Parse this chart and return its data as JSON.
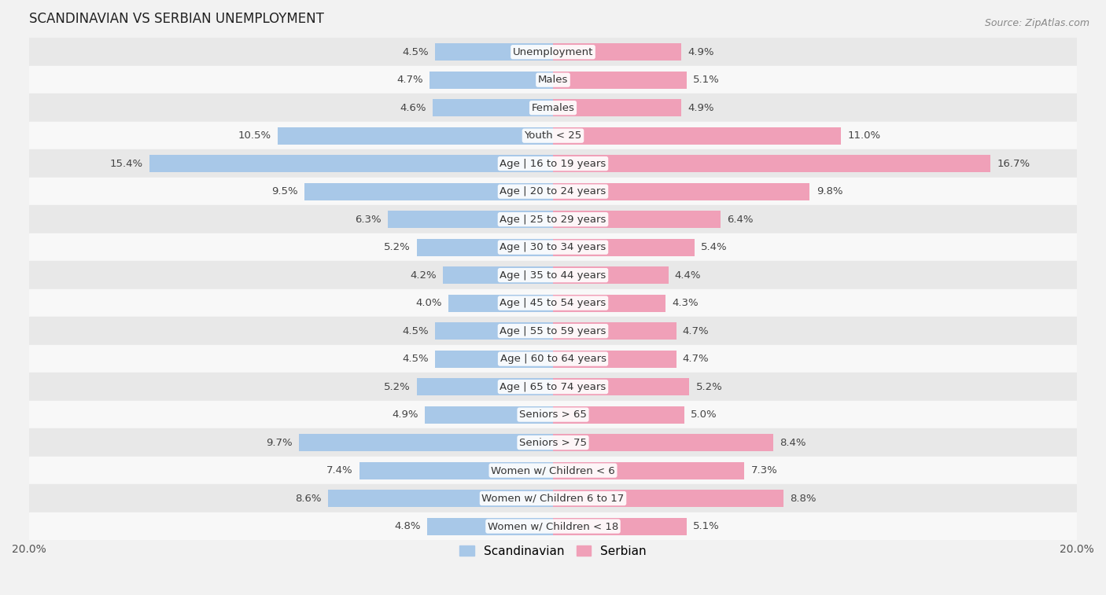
{
  "title": "SCANDINAVIAN VS SERBIAN UNEMPLOYMENT",
  "source": "Source: ZipAtlas.com",
  "categories": [
    "Unemployment",
    "Males",
    "Females",
    "Youth < 25",
    "Age | 16 to 19 years",
    "Age | 20 to 24 years",
    "Age | 25 to 29 years",
    "Age | 30 to 34 years",
    "Age | 35 to 44 years",
    "Age | 45 to 54 years",
    "Age | 55 to 59 years",
    "Age | 60 to 64 years",
    "Age | 65 to 74 years",
    "Seniors > 65",
    "Seniors > 75",
    "Women w/ Children < 6",
    "Women w/ Children 6 to 17",
    "Women w/ Children < 18"
  ],
  "scandinavian": [
    4.5,
    4.7,
    4.6,
    10.5,
    15.4,
    9.5,
    6.3,
    5.2,
    4.2,
    4.0,
    4.5,
    4.5,
    5.2,
    4.9,
    9.7,
    7.4,
    8.6,
    4.8
  ],
  "serbian": [
    4.9,
    5.1,
    4.9,
    11.0,
    16.7,
    9.8,
    6.4,
    5.4,
    4.4,
    4.3,
    4.7,
    4.7,
    5.2,
    5.0,
    8.4,
    7.3,
    8.8,
    5.1
  ],
  "scandinavian_color": "#a8c8e8",
  "serbian_color": "#f0a0b8",
  "bar_height": 0.62,
  "bg_color": "#f2f2f2",
  "row_even_color": "#e8e8e8",
  "row_odd_color": "#f8f8f8",
  "x_max": 20.0,
  "legend_label_scandinavian": "Scandinavian",
  "legend_label_serbian": "Serbian",
  "title_fontsize": 12,
  "axis_fontsize": 10,
  "label_fontsize": 9.5,
  "source_fontsize": 9
}
